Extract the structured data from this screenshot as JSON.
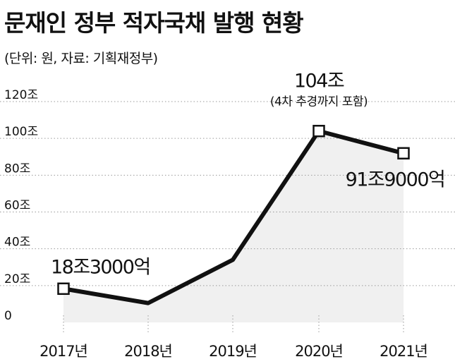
{
  "title": "문재인 정부 적자국채 발행 현황",
  "subtitle": "(단위: 원, 자료: 기획재정부)",
  "chart_data": {
    "type": "line",
    "categories": [
      "2017년",
      "2018년",
      "2019년",
      "2020년",
      "2021년"
    ],
    "values": [
      18.3,
      10.5,
      34,
      104,
      91.9
    ],
    "ylim": [
      0,
      120
    ],
    "yticks": [
      0,
      20,
      40,
      60,
      80,
      100,
      120
    ],
    "ytick_labels": [
      "0",
      "20조",
      "40조",
      "60조",
      "80조",
      "100조",
      "120조"
    ],
    "grid": true,
    "annotations": [
      {
        "index": 0,
        "text": "18조3000억"
      },
      {
        "index": 3,
        "text": "104조",
        "sub": "(4차 추경까지 포함)"
      },
      {
        "index": 4,
        "text": "91조9000억"
      }
    ],
    "markers_at": [
      0,
      3,
      4
    ]
  },
  "colors": {
    "line": "#111111",
    "fill": "#f0f0f0",
    "grid": "#9a9a9a"
  }
}
